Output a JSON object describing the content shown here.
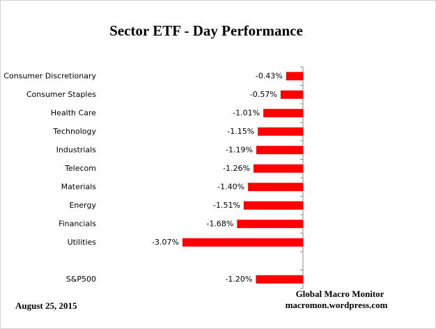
{
  "chart_data": {
    "type": "bar",
    "orientation": "horizontal",
    "title": "Sector ETF - Day  Performance",
    "categories": [
      "Consumer Discretionary",
      "Consumer Staples",
      "Health Care",
      "Technology",
      "Industrials",
      "Telecom",
      "Materials",
      "Energy",
      "Financials",
      "Utilities",
      null,
      "S&P500"
    ],
    "values": [
      -0.43,
      -0.57,
      -1.01,
      -1.15,
      -1.19,
      -1.26,
      -1.4,
      -1.51,
      -1.68,
      -3.07,
      null,
      -1.2
    ],
    "value_labels": [
      "-0.43%",
      "-0.57%",
      "-1.01%",
      "-1.15%",
      "-1.19%",
      "-1.26%",
      "-1.40%",
      "-1.51%",
      "-1.68%",
      "-3.07%",
      null,
      "-1.20%"
    ],
    "color": "#ff0000",
    "annotations": [
      "Global Macro Monitor",
      "macromon.wordpress.com",
      "August 25,  2015"
    ]
  }
}
